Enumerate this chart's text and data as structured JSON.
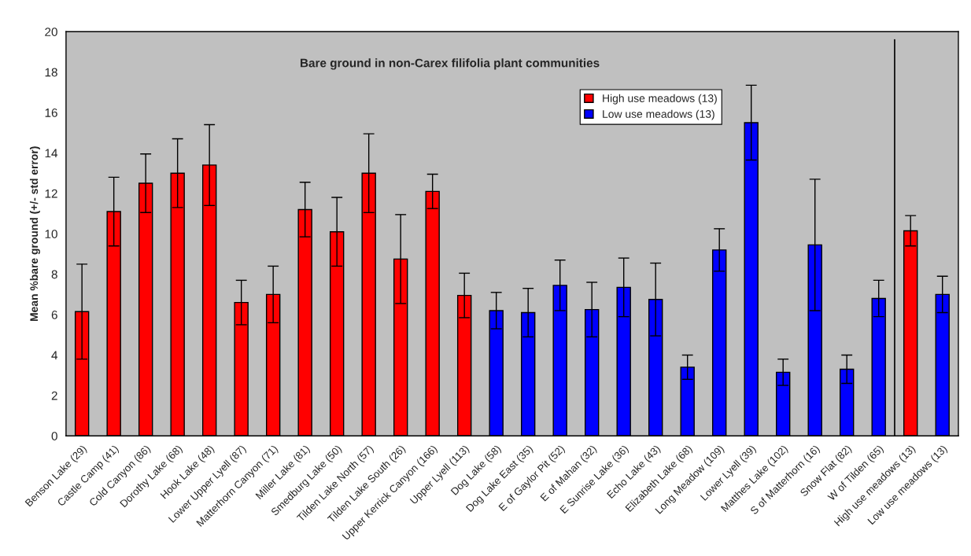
{
  "chart_data": {
    "type": "bar",
    "title": "Bare ground in non-Carex filifolia plant communities",
    "ylabel": "Mean %bare ground (+/- std error)",
    "categories": [
      "Benson Lake (29)",
      "Castle Camp (41)",
      "Cold Canyon (86)",
      "Dorothy Lake (68)",
      "Hook Lake (48)",
      "Lower Upper Lyell (87)",
      "Matterhorn Canyon (71)",
      "Miller Lake (81)",
      "Smedburg Lake (50)",
      "Tilden Lake North (57)",
      "Tilden Lake South (26)",
      "Upper Kerrick Canyon (166)",
      "Upper Lyell (113)",
      "Dog Lake (58)",
      "Dog Lake East (35)",
      "E of Gaylor Pit (52)",
      "E of Mahan (32)",
      "E Sunrise Lake (36)",
      "Echo Lake (43)",
      "Elizabeth Lake (68)",
      "Long Meadow (109)",
      "Lower Lyell (39)",
      "Matthes Lake (102)",
      "S of Matterhorn (16)",
      "Snow Flat (82)",
      "W of Tilden (65)",
      "High use meadows (13)",
      "Low use meadows (13)"
    ],
    "series": [
      {
        "name": "High use meadows (13)",
        "color": "#ff0000",
        "values": [
          6.15,
          11.1,
          12.5,
          13.0,
          13.4,
          6.6,
          7.0,
          11.2,
          10.1,
          13.0,
          8.75,
          12.1,
          6.95,
          null,
          null,
          null,
          null,
          null,
          null,
          null,
          null,
          null,
          null,
          null,
          null,
          null,
          10.15,
          null
        ],
        "errors": [
          2.35,
          1.7,
          1.45,
          1.7,
          2.0,
          1.1,
          1.4,
          1.35,
          1.7,
          1.95,
          2.2,
          0.85,
          1.1,
          null,
          null,
          null,
          null,
          null,
          null,
          null,
          null,
          null,
          null,
          null,
          null,
          null,
          0.75,
          null
        ]
      },
      {
        "name": "Low use meadows (13)",
        "color": "#0000ff",
        "values": [
          null,
          null,
          null,
          null,
          null,
          null,
          null,
          null,
          null,
          null,
          null,
          null,
          null,
          6.2,
          6.1,
          7.45,
          6.25,
          7.35,
          6.75,
          3.4,
          9.2,
          15.5,
          3.15,
          9.45,
          3.3,
          6.8,
          null,
          7.0
        ],
        "errors": [
          null,
          null,
          null,
          null,
          null,
          null,
          null,
          null,
          null,
          null,
          null,
          null,
          null,
          0.9,
          1.2,
          1.25,
          1.35,
          1.45,
          1.8,
          0.6,
          1.05,
          1.85,
          0.65,
          3.25,
          0.7,
          0.9,
          null,
          0.9
        ]
      }
    ],
    "ylim": [
      0,
      20
    ],
    "yticks": [
      0,
      2,
      4,
      6,
      8,
      10,
      12,
      14,
      16,
      18,
      20
    ],
    "grid": false,
    "legend": "top right"
  }
}
